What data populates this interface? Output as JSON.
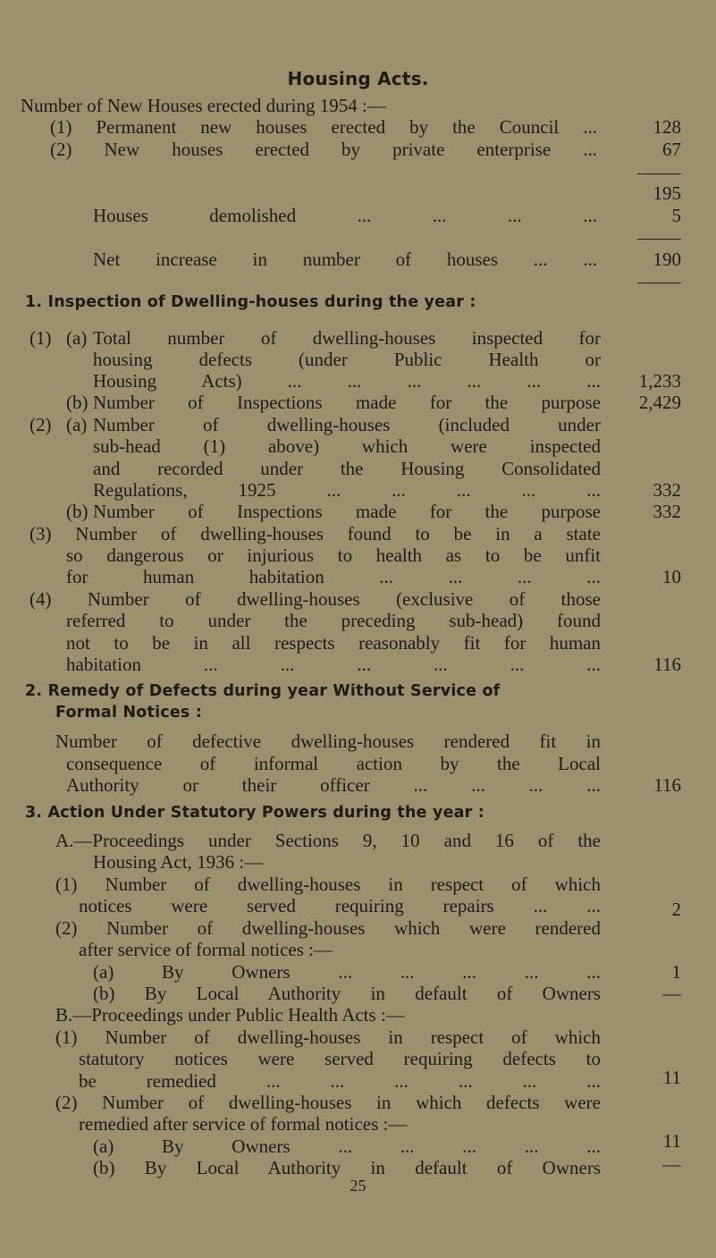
{
  "title": "Housing Acts.",
  "new_houses": {
    "intro": "Number of New Houses erected during 1954 :—",
    "items": [
      {
        "label": "(1) Permanent new houses erected by the Council ...",
        "value": "128"
      },
      {
        "label": "(2) New houses erected by private enterprise ...",
        "value": "67"
      }
    ],
    "subtotal": "195",
    "demolished": {
      "label": "Houses demolished ... ... ... ...",
      "value": "5"
    },
    "net": {
      "label": "Net increase in number of houses ... ...",
      "value": "190"
    }
  },
  "section1": {
    "heading": "1. Inspection of Dwelling-houses during the year :",
    "lines": [
      "(1)",
      "(a)",
      "Total number of dwelling-houses inspected for",
      "housing defects (under Public Health or",
      "Housing Acts) ... ... ... ... ... ...",
      "(b)",
      "Number of Inspections made for the purpose",
      "(2)",
      "(a)",
      "Number of dwelling-houses (included under",
      "sub-head (1) above) which were inspected",
      "and recorded under the Housing Consolidated",
      "Regulations, 1925 ... ... ... ... ...",
      "(b)",
      "Number of Inspections made for the purpose",
      "(3) Number of dwelling-houses found to be in a state",
      "so dangerous or injurious to health as to be unfit",
      "for human habitation ... ... ... ...",
      "(4) Number of dwelling-houses (exclusive of those",
      "referred to under the preceding sub-head) found",
      "not to be in all respects reasonably fit for human",
      "habitation ... ... ... ... ... ..."
    ],
    "values": [
      "1,233",
      "2,429",
      "332",
      "332",
      "10",
      "116"
    ]
  },
  "section2": {
    "heading": "2. Remedy of Defects during year Without Service of",
    "heading2": "Formal Notices :",
    "lines": [
      "Number of defective dwelling-houses rendered fit in",
      "consequence of informal action by the Local",
      "Authority or their officer ... ... ... ..."
    ],
    "value": "116"
  },
  "section3": {
    "heading": "3. Action Under Statutory Powers during the year :",
    "lines": [
      "A.—Proceedings under Sections 9, 10 and 16 of the",
      "Housing Act, 1936 :—",
      "(1) Number of dwelling-houses in respect of which",
      "notices were served requiring repairs ... ...",
      "(2) Number of dwelling-houses which were rendered",
      "after service of formal notices :—",
      "(a) By Owners ... ... ... ... ...",
      "(b) By Local Authority in default of Owners",
      "B.—Proceedings under Public Health Acts :—",
      "(1) Number of dwelling-houses in respect of which",
      "statutory notices were served requiring defects to",
      "be remedied ... ... ... ... ... ...",
      "(2) Number of dwelling-houses in which defects were",
      "remedied after service of formal notices :—",
      "(a) By Owners ... ... ... ... ...",
      "(b) By Local Authority in default of Owners"
    ],
    "values": [
      "2",
      "1",
      "—",
      "11",
      "11",
      "—"
    ]
  },
  "page_number": "25"
}
